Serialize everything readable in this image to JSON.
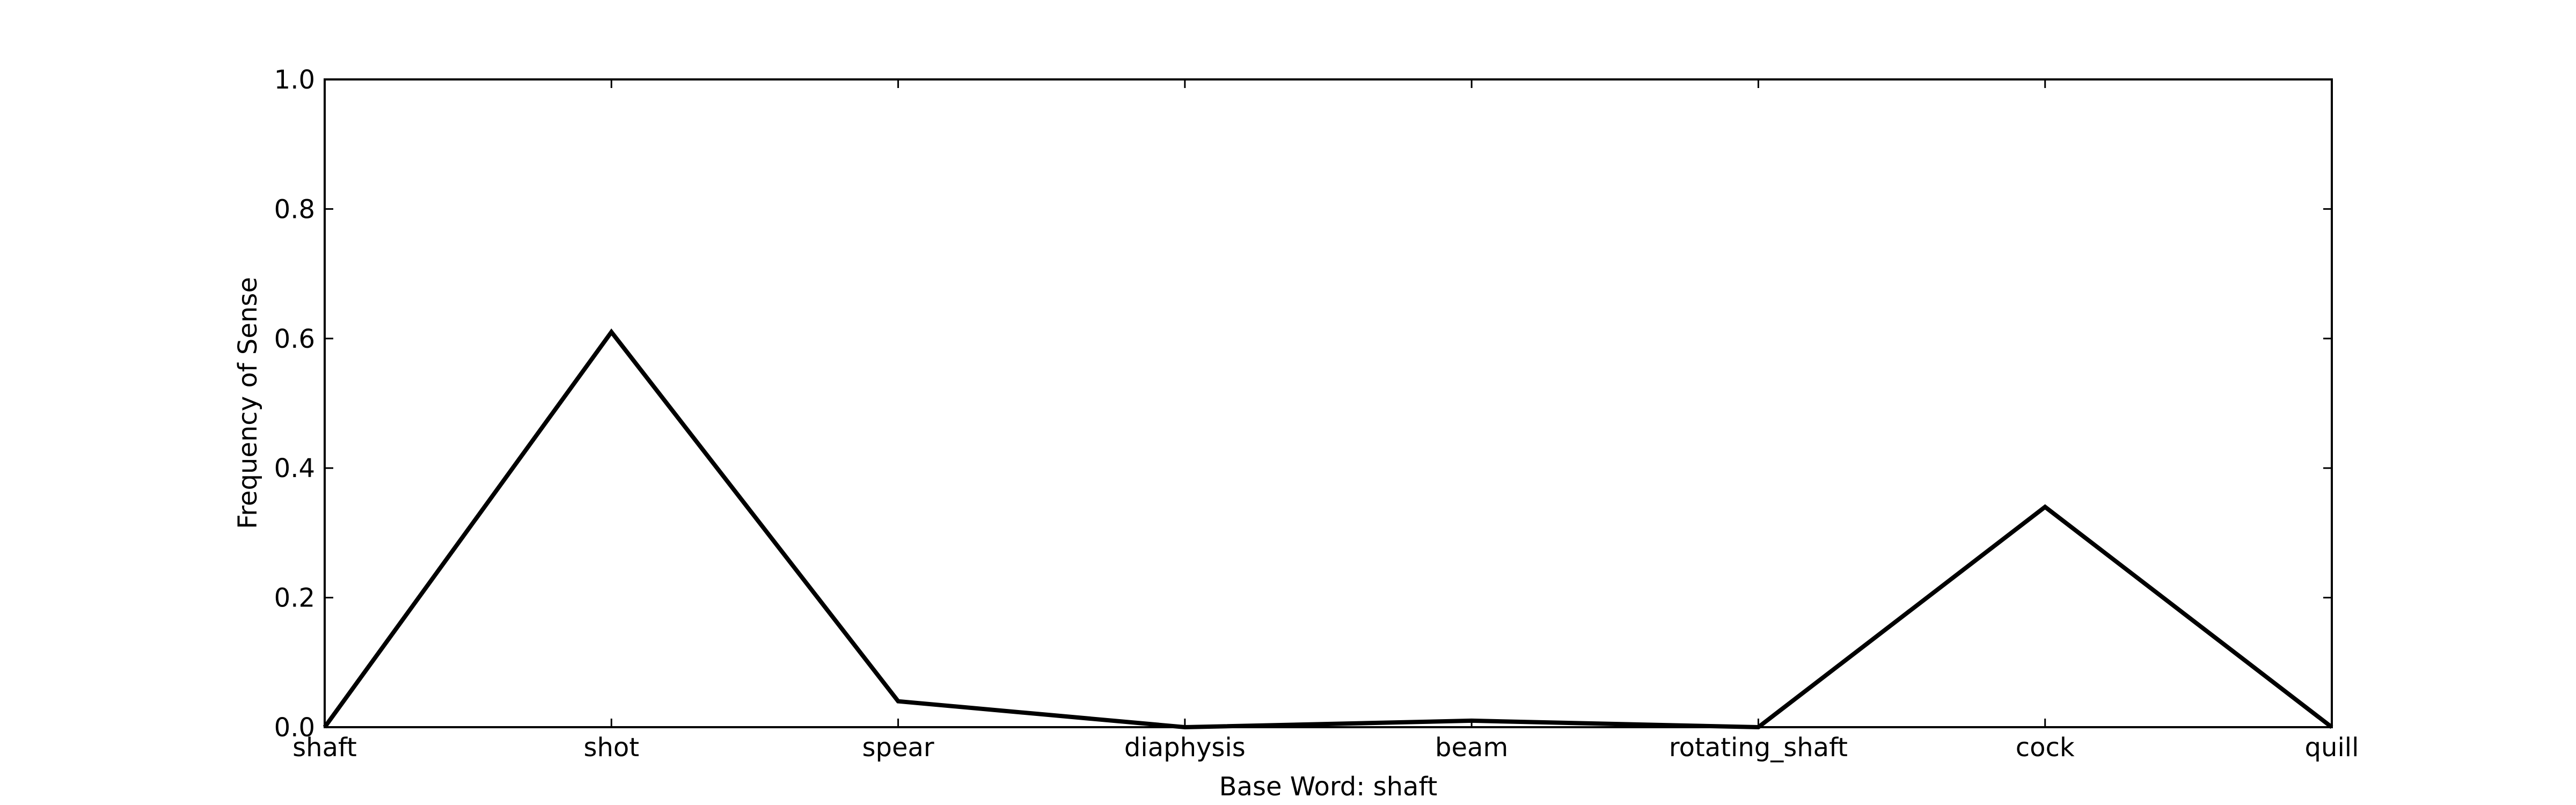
{
  "chart_data": {
    "type": "line",
    "title": "",
    "xlabel": "Base Word: shaft",
    "ylabel": "Frequency of Sense",
    "categories": [
      "shaft",
      "shot",
      "spear",
      "diaphysis",
      "beam",
      "rotating_shaft",
      "cock",
      "quill"
    ],
    "series": [
      {
        "values": [
          0.0,
          0.61,
          0.04,
          0.0,
          0.01,
          0.0,
          0.34,
          0.0
        ],
        "color": "#000000"
      }
    ],
    "ylim": [
      0.0,
      1.0
    ],
    "yticks": [
      "0.0",
      "0.2",
      "0.4",
      "0.6",
      "0.8",
      "1.0"
    ],
    "grid": false,
    "legend": "none"
  }
}
